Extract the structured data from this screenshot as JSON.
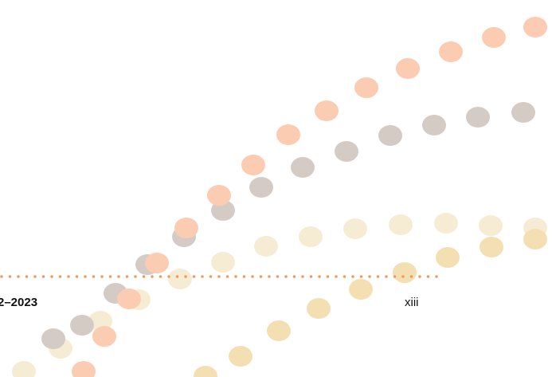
{
  "footer": {
    "left_text": "2–2023",
    "page_number": "xiii"
  }
}
